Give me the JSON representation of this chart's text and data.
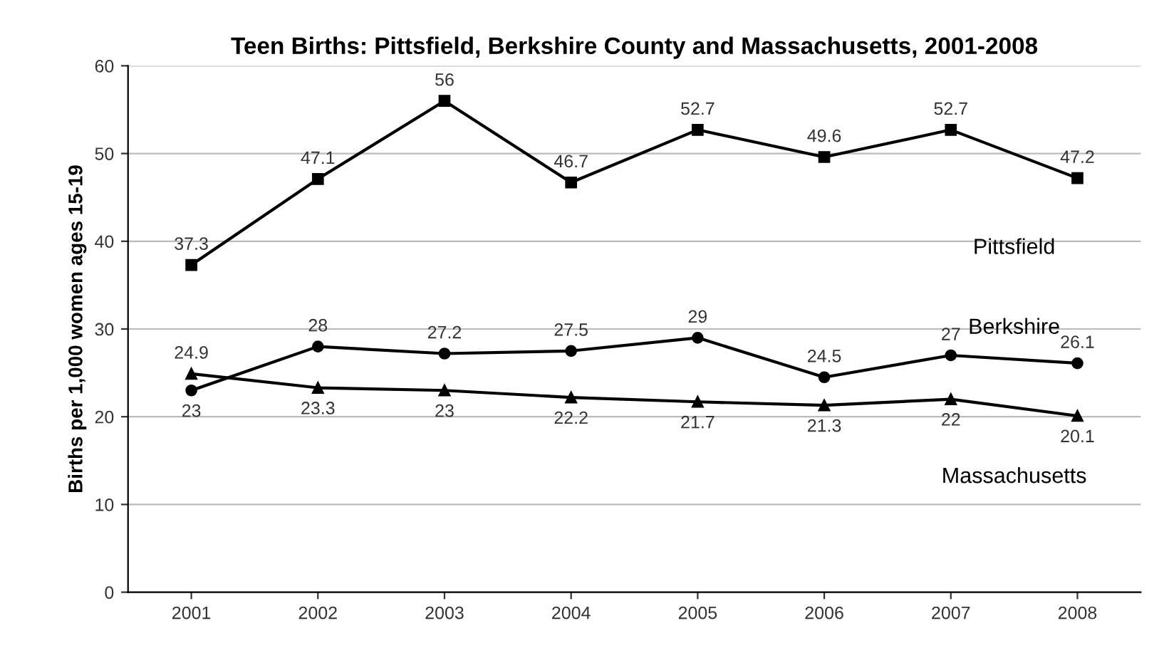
{
  "chart_data": {
    "type": "line",
    "title": "Teen Births: Pittsfield, Berkshire County and Massachusetts, 2001-2008",
    "ylabel": "Births per 1,000 women ages 15-19",
    "categories": [
      "2001",
      "2002",
      "2003",
      "2004",
      "2005",
      "2006",
      "2007",
      "2008"
    ],
    "series": [
      {
        "name": "Pittsfield",
        "color": "#000000",
        "marker": "square",
        "values": [
          37.3,
          47.1,
          56,
          46.7,
          52.7,
          49.6,
          52.7,
          47.2
        ]
      },
      {
        "name": "Berkshire",
        "color": "#000000",
        "marker": "circle",
        "values": [
          23,
          28,
          27.2,
          27.5,
          29,
          24.5,
          27,
          26.1
        ]
      },
      {
        "name": "Massachusetts",
        "color": "#000000",
        "marker": "triangle",
        "values": [
          24.9,
          23.3,
          23,
          22.2,
          21.7,
          21.3,
          22,
          20.1
        ]
      }
    ],
    "ylim": [
      0,
      60
    ],
    "yticks": [
      0,
      10,
      20,
      30,
      40,
      50,
      60
    ],
    "grid": "y",
    "data_labels": true,
    "legend": false,
    "line_style": "solid"
  }
}
